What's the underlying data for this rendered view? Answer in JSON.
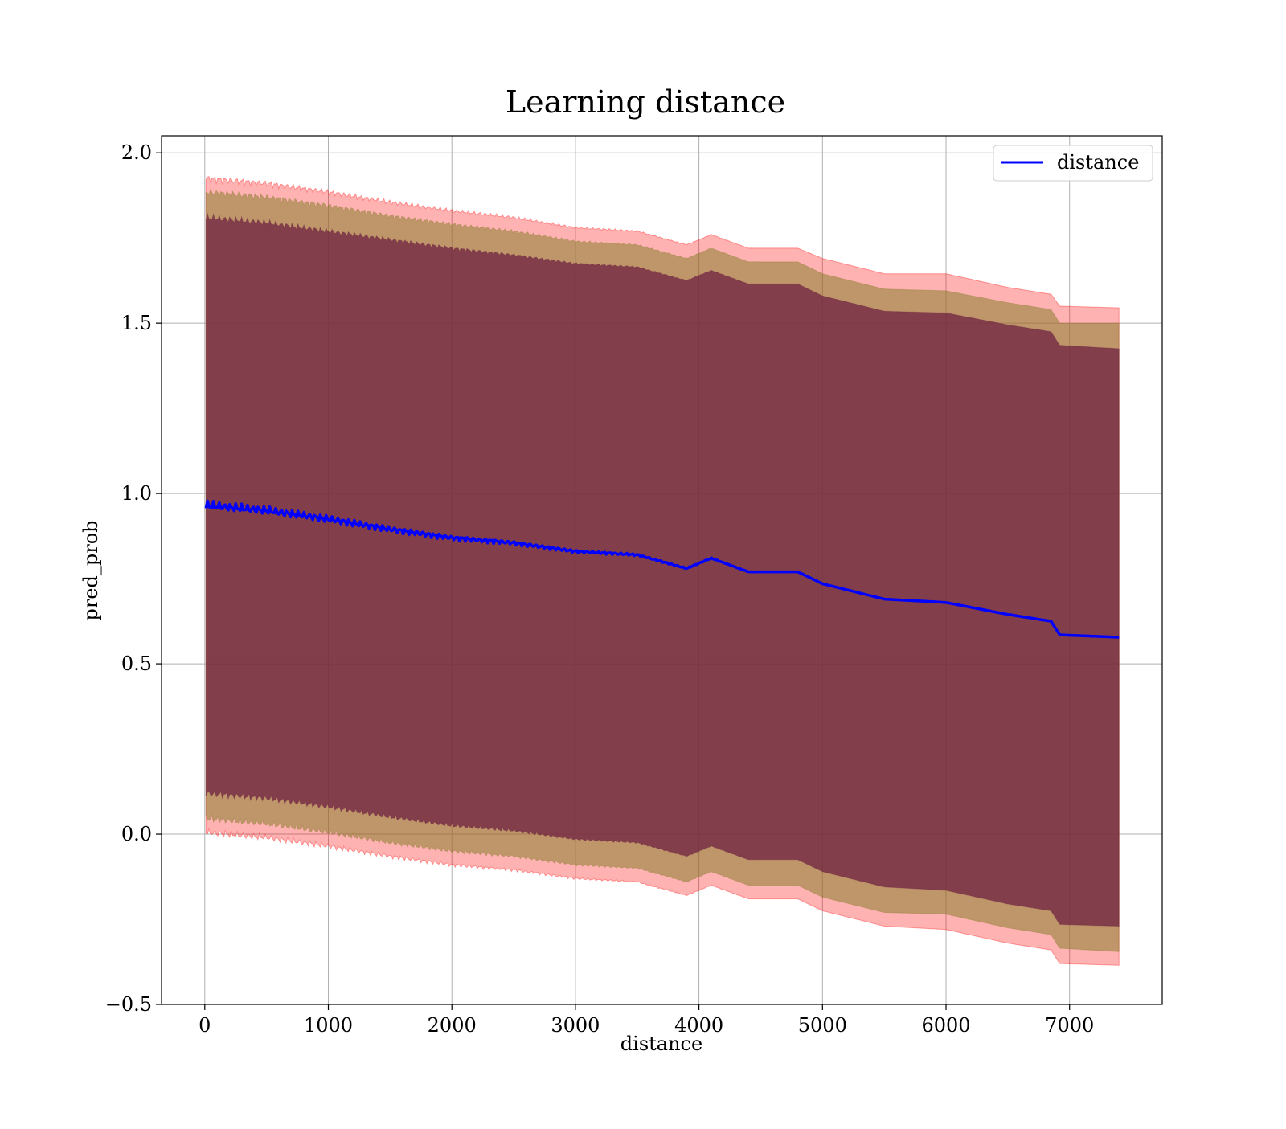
{
  "chart_data": {
    "type": "area",
    "title": "Learning distance",
    "xlabel": "distance",
    "ylabel": "pred_prob",
    "xlim": [
      -350,
      7750
    ],
    "ylim": [
      -0.5,
      2.05
    ],
    "xticks": [
      0,
      1000,
      2000,
      3000,
      4000,
      5000,
      6000,
      7000
    ],
    "xtick_labels": [
      "0",
      "1000",
      "2000",
      "3000",
      "4000",
      "5000",
      "6000",
      "7000"
    ],
    "yticks": [
      -0.5,
      0.0,
      0.5,
      1.0,
      1.5,
      2.0
    ],
    "ytick_labels": [
      "−0.5",
      "0.0",
      "0.5",
      "1.0",
      "1.5",
      "2.0"
    ],
    "grid": true,
    "legend": {
      "placement": "top-right",
      "entries": [
        "distance"
      ]
    },
    "colors": {
      "line": "#0000ff",
      "band_outer": "#ff0000",
      "band_middle": "#8b7d30",
      "band_inner": "#6e2240",
      "grid": "#b0b0b0"
    },
    "x": [
      10,
      500,
      1000,
      1500,
      2000,
      2500,
      3000,
      3500,
      3900,
      4100,
      4400,
      4800,
      5000,
      5500,
      6000,
      6500,
      6850,
      6920,
      7400
    ],
    "series": [
      {
        "name": "distance",
        "values": [
          0.965,
          0.95,
          0.925,
          0.895,
          0.87,
          0.855,
          0.83,
          0.82,
          0.78,
          0.81,
          0.77,
          0.77,
          0.735,
          0.69,
          0.68,
          0.645,
          0.625,
          0.585,
          0.578
        ]
      }
    ],
    "bands": [
      {
        "upper": [
          1.925,
          1.91,
          1.885,
          1.855,
          1.83,
          1.81,
          1.78,
          1.77,
          1.73,
          1.76,
          1.72,
          1.72,
          1.69,
          1.645,
          1.645,
          1.605,
          1.585,
          1.55,
          1.545
        ],
        "lower": [
          0.005,
          -0.01,
          -0.035,
          -0.065,
          -0.09,
          -0.105,
          -0.13,
          -0.14,
          -0.18,
          -0.15,
          -0.19,
          -0.19,
          -0.225,
          -0.27,
          -0.28,
          -0.32,
          -0.34,
          -0.38,
          -0.385
        ]
      },
      {
        "upper": [
          1.885,
          1.87,
          1.845,
          1.815,
          1.79,
          1.77,
          1.74,
          1.73,
          1.69,
          1.72,
          1.68,
          1.68,
          1.645,
          1.6,
          1.595,
          1.56,
          1.54,
          1.5,
          1.5
        ],
        "lower": [
          0.045,
          0.03,
          0.005,
          -0.025,
          -0.05,
          -0.065,
          -0.09,
          -0.1,
          -0.14,
          -0.11,
          -0.15,
          -0.15,
          -0.185,
          -0.23,
          -0.235,
          -0.275,
          -0.295,
          -0.335,
          -0.345
        ]
      },
      {
        "upper": [
          1.81,
          1.795,
          1.77,
          1.745,
          1.72,
          1.7,
          1.675,
          1.665,
          1.625,
          1.655,
          1.615,
          1.615,
          1.58,
          1.535,
          1.53,
          1.495,
          1.475,
          1.435,
          1.425
        ],
        "lower": [
          0.12,
          0.105,
          0.08,
          0.05,
          0.025,
          0.01,
          -0.015,
          -0.025,
          -0.065,
          -0.035,
          -0.075,
          -0.075,
          -0.11,
          -0.155,
          -0.165,
          -0.205,
          -0.225,
          -0.265,
          -0.27
        ]
      }
    ]
  }
}
